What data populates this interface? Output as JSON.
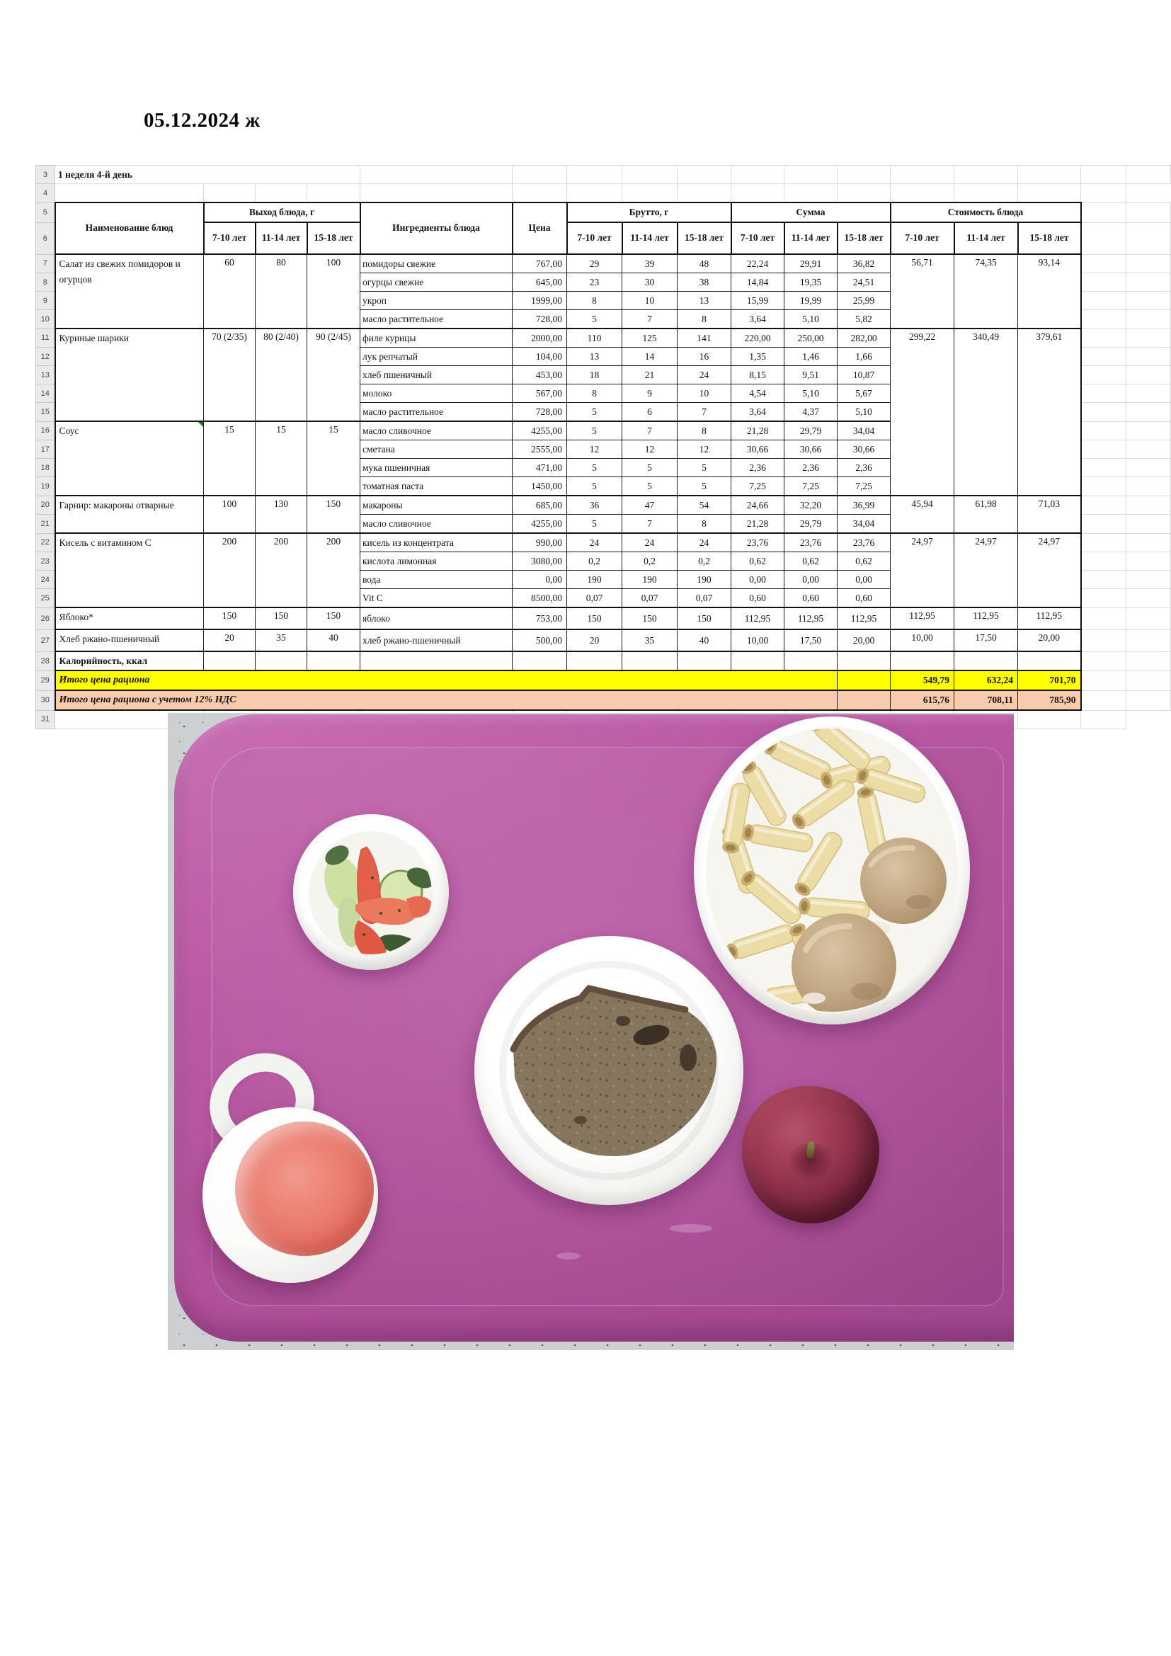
{
  "page": {
    "title": "05.12.2024 ж"
  },
  "colors": {
    "totals_yellow": "#ffff00",
    "totals_peach": "#f8cbad",
    "row_header_bg": "#eaeaea",
    "tray_purple": "#b2519c",
    "comment_marker_green": "#0e7d0e"
  },
  "sheet": {
    "week_label": "1 неделя 4-й день",
    "row_numbers": [
      "3",
      "4",
      "5",
      "6",
      "7",
      "8",
      "9",
      "10",
      "11",
      "12",
      "13",
      "14",
      "15",
      "16",
      "17",
      "18",
      "19",
      "20",
      "21",
      "22",
      "23",
      "24",
      "25",
      "26",
      "27",
      "28",
      "29",
      "30",
      "31"
    ],
    "headers": {
      "dish": "Наименование блюд",
      "output": "Выход блюда, г",
      "ingredients": "Ингредиенты блюда",
      "price": "Цена",
      "brutto": "Брутто, г",
      "summa": "Сумма",
      "cost": "Стоимость блюда",
      "ages": [
        "7-10 лет",
        "11-14 лет",
        "15-18 лет"
      ]
    },
    "dishes": [
      {
        "name": "Салат из свежих помидоров и огурцов",
        "output": [
          "60",
          "80",
          "100"
        ],
        "cost": [
          "56,71",
          "74,35",
          "93,14"
        ],
        "rows": [
          {
            "ingredient": "помидоры свежие",
            "price": "767,00",
            "brutto": [
              "29",
              "39",
              "48"
            ],
            "summa": [
              "22,24",
              "29,91",
              "36,82"
            ]
          },
          {
            "ingredient": "огурцы свежие",
            "price": "645,00",
            "brutto": [
              "23",
              "30",
              "38"
            ],
            "summa": [
              "14,84",
              "19,35",
              "24,51"
            ]
          },
          {
            "ingredient": "укроп",
            "price": "1999,00",
            "brutto": [
              "8",
              "10",
              "13"
            ],
            "summa": [
              "15,99",
              "19,99",
              "25,99"
            ]
          },
          {
            "ingredient": "масло растительное",
            "price": "728,00",
            "brutto": [
              "5",
              "7",
              "8"
            ],
            "summa": [
              "3,64",
              "5,10",
              "5,82"
            ]
          }
        ]
      },
      {
        "name": "Куриные шарики",
        "output": [
          "70 (2/35)",
          "80 (2/40)",
          "90 (2/45)"
        ],
        "cost": [
          "299,22",
          "340,49",
          "379,61"
        ],
        "cost_rows": 9,
        "rows": [
          {
            "ingredient": "филе курицы",
            "price": "2000,00",
            "brutto": [
              "110",
              "125",
              "141"
            ],
            "summa": [
              "220,00",
              "250,00",
              "282,00"
            ]
          },
          {
            "ingredient": "лук репчатый",
            "price": "104,00",
            "brutto": [
              "13",
              "14",
              "16"
            ],
            "summa": [
              "1,35",
              "1,46",
              "1,66"
            ]
          },
          {
            "ingredient": "хлеб пшеничный",
            "price": "453,00",
            "brutto": [
              "18",
              "21",
              "24"
            ],
            "summa": [
              "8,15",
              "9,51",
              "10,87"
            ]
          },
          {
            "ingredient": "молоко",
            "price": "567,00",
            "brutto": [
              "8",
              "9",
              "10"
            ],
            "summa": [
              "4,54",
              "5,10",
              "5,67"
            ]
          },
          {
            "ingredient": "масло растительное",
            "price": "728,00",
            "brutto": [
              "5",
              "6",
              "7"
            ],
            "summa": [
              "3,64",
              "4,37",
              "5,10"
            ]
          }
        ]
      },
      {
        "name": "Соус",
        "note": true,
        "output": [
          "15",
          "15",
          "15"
        ],
        "cost": null,
        "rows": [
          {
            "ingredient": "масло сливочное",
            "price": "4255,00",
            "brutto": [
              "5",
              "7",
              "8"
            ],
            "summa": [
              "21,28",
              "29,79",
              "34,04"
            ]
          },
          {
            "ingredient": "сметана",
            "price": "2555,00",
            "brutto": [
              "12",
              "12",
              "12"
            ],
            "summa": [
              "30,66",
              "30,66",
              "30,66"
            ]
          },
          {
            "ingredient": "мука пшеничная",
            "price": "471,00",
            "brutto": [
              "5",
              "5",
              "5"
            ],
            "summa": [
              "2,36",
              "2,36",
              "2,36"
            ]
          },
          {
            "ingredient": "томатная паста",
            "price": "1450,00",
            "brutto": [
              "5",
              "5",
              "5"
            ],
            "summa": [
              "7,25",
              "7,25",
              "7,25"
            ]
          }
        ]
      },
      {
        "name": "Гарнир: макароны отварные",
        "output": [
          "100",
          "130",
          "150"
        ],
        "cost": [
          "45,94",
          "61,98",
          "71,03"
        ],
        "rows": [
          {
            "ingredient": "макароны",
            "price": "685,00",
            "brutto": [
              "36",
              "47",
              "54"
            ],
            "summa": [
              "24,66",
              "32,20",
              "36,99"
            ]
          },
          {
            "ingredient": "масло сливочное",
            "price": "4255,00",
            "brutto": [
              "5",
              "7",
              "8"
            ],
            "summa": [
              "21,28",
              "29,79",
              "34,04"
            ]
          }
        ]
      },
      {
        "name": "Кисель с витамином С",
        "output": [
          "200",
          "200",
          "200"
        ],
        "cost": [
          "24,97",
          "24,97",
          "24,97"
        ],
        "rows": [
          {
            "ingredient": "кисель из концентрата",
            "price": "990,00",
            "brutto": [
              "24",
              "24",
              "24"
            ],
            "summa": [
              "23,76",
              "23,76",
              "23,76"
            ]
          },
          {
            "ingredient": "кислота лимонная",
            "price": "3080,00",
            "brutto": [
              "0,2",
              "0,2",
              "0,2"
            ],
            "summa": [
              "0,62",
              "0,62",
              "0,62"
            ]
          },
          {
            "ingredient": "вода",
            "price": "0,00",
            "brutto": [
              "190",
              "190",
              "190"
            ],
            "summa": [
              "0,00",
              "0,00",
              "0,00"
            ]
          },
          {
            "ingredient": "Vit C",
            "price": "8500,00",
            "brutto": [
              "0,07",
              "0,07",
              "0,07"
            ],
            "summa": [
              "0,60",
              "0,60",
              "0,60"
            ]
          }
        ]
      },
      {
        "name": "Яблоко*",
        "output": [
          "150",
          "150",
          "150"
        ],
        "cost": [
          "112,95",
          "112,95",
          "112,95"
        ],
        "rows": [
          {
            "ingredient": "яблоко",
            "price": "753,00",
            "brutto": [
              "150",
              "150",
              "150"
            ],
            "summa": [
              "112,95",
              "112,95",
              "112,95"
            ]
          }
        ]
      },
      {
        "name": "Хлеб ржано-пшеничный",
        "output": [
          "20",
          "35",
          "40"
        ],
        "cost": [
          "10,00",
          "17,50",
          "20,00"
        ],
        "rows": [
          {
            "ingredient": "хлеб ржано-пшеничный",
            "price": "500,00",
            "brutto": [
              "20",
              "35",
              "40"
            ],
            "summa": [
              "10,00",
              "17,50",
              "20,00"
            ]
          }
        ]
      }
    ],
    "calories_label": "Калорийность, ккал",
    "totals": [
      {
        "label": "Итого цена рациона",
        "values": [
          "549,79",
          "632,24",
          "701,70"
        ]
      },
      {
        "label": "Итого цена рациона с учетом 12% НДС",
        "values": [
          "615,76",
          "708,11",
          "785,90"
        ]
      }
    ]
  },
  "photo": {
    "items": [
      "tray",
      "salad-bowl",
      "pasta-bowl-with-meatballs",
      "bread-plate",
      "drink-mug",
      "apple"
    ]
  }
}
